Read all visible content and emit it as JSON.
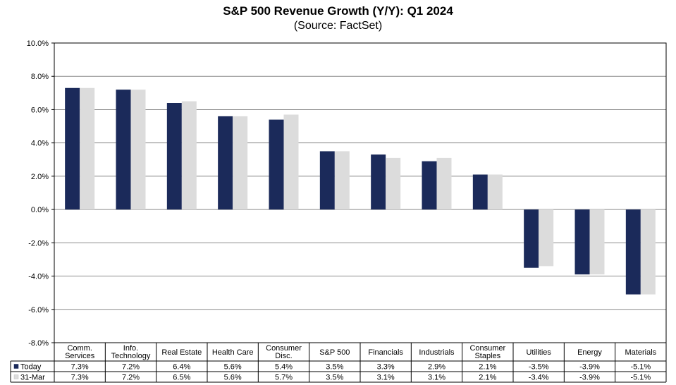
{
  "chart_data": {
    "type": "bar",
    "title": "S&P 500 Revenue Growth (Y/Y): Q1 2024",
    "subtitle": "(Source: FactSet)",
    "categories": [
      [
        "Comm.",
        "Services"
      ],
      [
        "Info.",
        "Technology"
      ],
      [
        "Real Estate"
      ],
      [
        "Health Care"
      ],
      [
        "Consumer",
        "Disc."
      ],
      [
        "S&P 500"
      ],
      [
        "Financials"
      ],
      [
        "Industrials"
      ],
      [
        "Consumer",
        "Staples"
      ],
      [
        "Utilities"
      ],
      [
        "Energy"
      ],
      [
        "Materials"
      ]
    ],
    "series": [
      {
        "name": "Today",
        "color": "#1b2a5a",
        "values": [
          7.3,
          7.2,
          6.4,
          5.6,
          5.4,
          3.5,
          3.3,
          2.9,
          2.1,
          -3.5,
          -3.9,
          -5.1
        ],
        "labels": [
          "7.3%",
          "7.2%",
          "6.4%",
          "5.6%",
          "5.4%",
          "3.5%",
          "3.3%",
          "2.9%",
          "2.1%",
          "-3.5%",
          "-3.9%",
          "-5.1%"
        ]
      },
      {
        "name": "31-Mar",
        "color": "#dcdcdc",
        "values": [
          7.3,
          7.2,
          6.5,
          5.6,
          5.7,
          3.5,
          3.1,
          3.1,
          2.1,
          -3.4,
          -3.9,
          -5.1
        ],
        "labels": [
          "7.3%",
          "7.2%",
          "6.5%",
          "5.6%",
          "5.7%",
          "3.5%",
          "3.1%",
          "3.1%",
          "2.1%",
          "-3.4%",
          "-3.9%",
          "-5.1%"
        ]
      }
    ],
    "ylim": [
      -8,
      10
    ],
    "yticks": [
      {
        "value": 10,
        "label": "10.0%"
      },
      {
        "value": 8,
        "label": "8.0%"
      },
      {
        "value": 6,
        "label": "6.0%"
      },
      {
        "value": 4,
        "label": "4.0%"
      },
      {
        "value": 2,
        "label": "2.0%"
      },
      {
        "value": 0,
        "label": "0.0%"
      },
      {
        "value": -2,
        "label": "-2.0%"
      },
      {
        "value": -4,
        "label": "-4.0%"
      },
      {
        "value": -6,
        "label": "-6.0%"
      },
      {
        "value": -8,
        "label": "-8.0%"
      }
    ],
    "grid": true,
    "legend": "data-table"
  }
}
